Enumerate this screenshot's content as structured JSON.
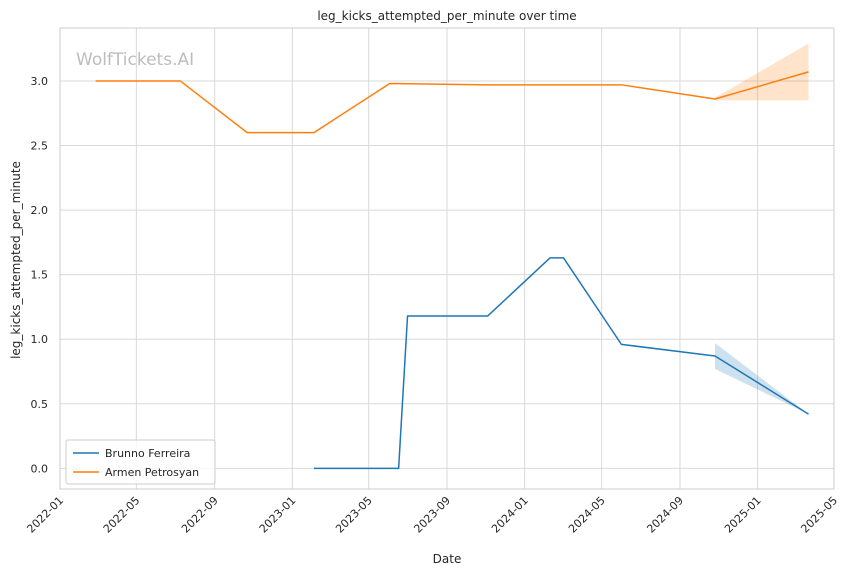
{
  "chart_data": {
    "type": "line",
    "title": "leg_kicks_attempted_per_minute over time",
    "xlabel": "Date",
    "ylabel": "leg_kicks_attempted_per_minute",
    "watermark": "WolfTickets.AI",
    "xlim": [
      "2022-01-01",
      "2025-05-01"
    ],
    "ylim": [
      -0.16,
      3.41
    ],
    "x_ticks": [
      "2022-01",
      "2022-05",
      "2022-09",
      "2023-01",
      "2023-05",
      "2023-09",
      "2024-01",
      "2024-05",
      "2024-09",
      "2025-01",
      "2025-05"
    ],
    "y_ticks": [
      "0.0",
      "0.5",
      "1.0",
      "1.5",
      "2.0",
      "2.5",
      "3.0"
    ],
    "grid": true,
    "legend_position": "lower-left",
    "series": [
      {
        "name": "Brunno Ferreira",
        "color": "#1f77b4",
        "points": [
          {
            "x": "2023-02-04",
            "y": 0.0
          },
          {
            "x": "2023-06-17",
            "y": 0.0
          },
          {
            "x": "2023-07-01",
            "y": 1.18
          },
          {
            "x": "2023-11-04",
            "y": 1.18
          },
          {
            "x": "2024-02-10",
            "y": 1.63
          },
          {
            "x": "2024-03-02",
            "y": 1.63
          },
          {
            "x": "2024-06-01",
            "y": 0.96
          },
          {
            "x": "2024-10-26",
            "y": 0.87
          },
          {
            "x": "2025-03-22",
            "y": 0.42
          }
        ],
        "band": [
          {
            "x": "2024-10-26",
            "low": 0.77,
            "high": 0.97
          },
          {
            "x": "2025-03-22",
            "low": 0.42,
            "high": 0.42
          }
        ]
      },
      {
        "name": "Armen Petrosyan",
        "color": "#ff7f0e",
        "points": [
          {
            "x": "2022-02-26",
            "y": 3.0
          },
          {
            "x": "2022-07-09",
            "y": 3.0
          },
          {
            "x": "2022-10-22",
            "y": 2.6
          },
          {
            "x": "2023-02-04",
            "y": 2.6
          },
          {
            "x": "2023-06-03",
            "y": 2.98
          },
          {
            "x": "2023-11-04",
            "y": 2.97
          },
          {
            "x": "2024-06-01",
            "y": 2.97
          },
          {
            "x": "2024-10-26",
            "y": 2.86
          },
          {
            "x": "2025-03-22",
            "y": 3.07
          }
        ],
        "band": [
          {
            "x": "2024-10-26",
            "low": 2.85,
            "high": 2.87
          },
          {
            "x": "2025-03-22",
            "low": 2.85,
            "high": 3.29
          }
        ]
      }
    ]
  }
}
